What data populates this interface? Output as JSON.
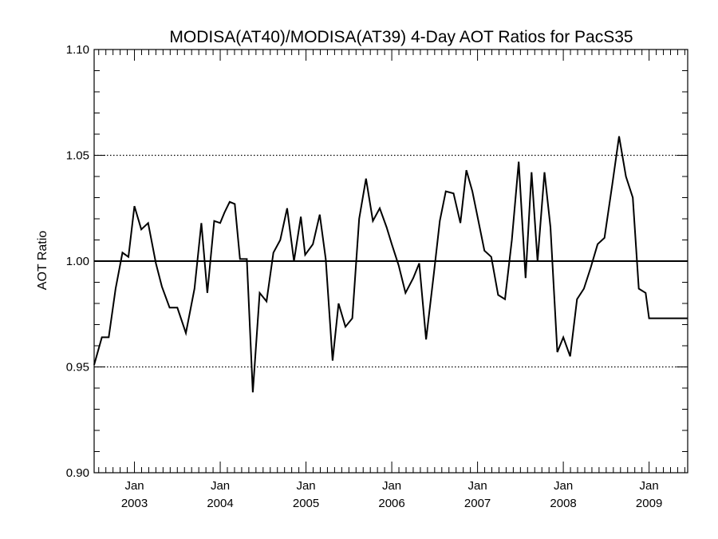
{
  "chart_data": {
    "type": "line",
    "title": "MODISA(AT40)/MODISA(AT39) 4-Day AOT Ratios for PacS35",
    "xlabel": "",
    "ylabel": "AOT Ratio",
    "ylim": [
      0.9,
      1.1
    ],
    "yticks": [
      "0.90",
      "0.95",
      "1.00",
      "1.05",
      "1.10"
    ],
    "y_minor_step": 0.01,
    "xlim": [
      2002.53,
      2009.45
    ],
    "xticks": [
      {
        "pos": 2003.0,
        "month": "Jan",
        "year": "2003"
      },
      {
        "pos": 2004.0,
        "month": "Jan",
        "year": "2004"
      },
      {
        "pos": 2005.0,
        "month": "Jan",
        "year": "2005"
      },
      {
        "pos": 2006.0,
        "month": "Jan",
        "year": "2006"
      },
      {
        "pos": 2007.0,
        "month": "Jan",
        "year": "2007"
      },
      {
        "pos": 2008.0,
        "month": "Jan",
        "year": "2008"
      },
      {
        "pos": 2009.0,
        "month": "Jan",
        "year": "2009"
      }
    ],
    "reference_line": 1.0,
    "dotted_gridlines": [
      0.95,
      1.05
    ],
    "grid": false,
    "series": [
      {
        "color": "#000000",
        "x": [
          2002.53,
          2002.62,
          2002.7,
          2002.78,
          2002.86,
          2002.93,
          2003.0,
          2003.08,
          2003.16,
          2003.25,
          2003.32,
          2003.41,
          2003.5,
          2003.6,
          2003.7,
          2003.78,
          2003.85,
          2003.93,
          2004.0,
          2004.05,
          2004.11,
          2004.17,
          2004.23,
          2004.31,
          2004.38,
          2004.46,
          2004.54,
          2004.62,
          2004.7,
          2004.78,
          2004.86,
          2004.94,
          2004.99,
          2005.08,
          2005.16,
          2005.23,
          2005.31,
          2005.38,
          2005.46,
          2005.54,
          2005.62,
          2005.7,
          2005.78,
          2005.86,
          2005.94,
          2006.0,
          2006.08,
          2006.16,
          2006.25,
          2006.32,
          2006.4,
          2006.49,
          2006.56,
          2006.63,
          2006.72,
          2006.8,
          2006.87,
          2006.94,
          2006.99,
          2007.08,
          2007.16,
          2007.24,
          2007.32,
          2007.4,
          2007.48,
          2007.56,
          2007.63,
          2007.7,
          2007.78,
          2007.85,
          2007.93,
          2008.0,
          2008.08,
          2008.16,
          2008.24,
          2008.32,
          2008.4,
          2008.48,
          2008.57,
          2008.65,
          2008.73,
          2008.81,
          2008.88,
          2008.96,
          2009.0,
          2009.05,
          2009.13,
          2009.21,
          2009.29,
          2009.37,
          2009.45
        ],
        "y": [
          0.951,
          0.964,
          0.964,
          0.987,
          1.004,
          1.002,
          1.026,
          1.015,
          1.018,
          0.999,
          0.988,
          0.978,
          0.978,
          0.966,
          0.987,
          1.018,
          0.985,
          1.019,
          1.018,
          1.023,
          1.028,
          1.027,
          1.001,
          1.001,
          0.938,
          0.985,
          0.981,
          1.004,
          1.01,
          1.025,
          1.0,
          1.021,
          1.003,
          1.008,
          1.022,
          1.001,
          0.953,
          0.98,
          0.969,
          0.973,
          1.02,
          1.039,
          1.019,
          1.025,
          1.016,
          1.008,
          0.998,
          0.985,
          0.992,
          0.999,
          0.963,
          0.994,
          1.019,
          1.033,
          1.032,
          1.018,
          1.043,
          1.033,
          1.023,
          1.005,
          1.002,
          0.984,
          0.982,
          1.01,
          1.047,
          0.992,
          1.042,
          1.0,
          1.042,
          1.016,
          0.957,
          0.964,
          0.955,
          0.982,
          0.987,
          0.997,
          1.008,
          1.011,
          1.036,
          1.059,
          1.04,
          1.03,
          0.987,
          0.985,
          0.973,
          0.973,
          0.973,
          0.973,
          0.973,
          0.973,
          0.973
        ]
      }
    ]
  }
}
